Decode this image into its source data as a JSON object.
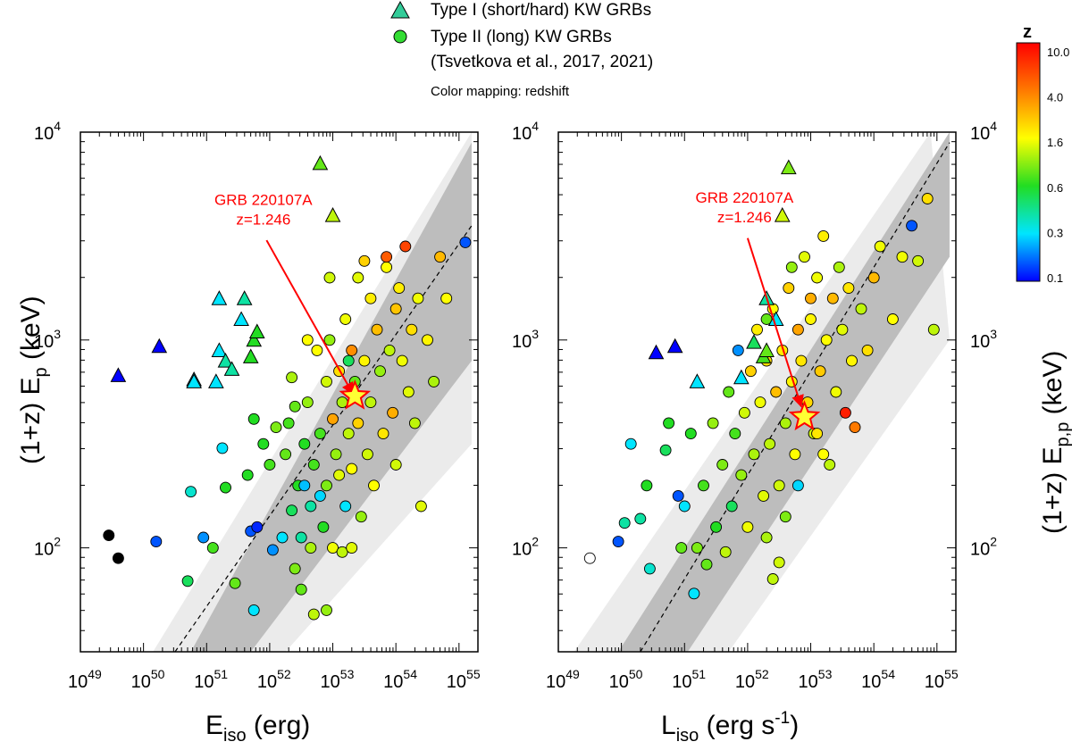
{
  "legend": {
    "type1_label": "Type I (short/hard) KW GRBs",
    "type2_label": "Type II (long) KW GRBs",
    "type2_ref": "(Tsvetkova et al., 2017, 2021)",
    "color_note": "Color mapping: redshift",
    "type1_color": "#33cc99",
    "type2_color": "#33dd33"
  },
  "colorbar": {
    "title": "z",
    "ticks": [
      "10.0",
      "4.0",
      "1.6",
      "0.6",
      "0.3",
      "0.1"
    ],
    "colors": [
      "#ff0000",
      "#ff7a00",
      "#ffff00",
      "#22dd22",
      "#00e5ff",
      "#0000ff"
    ]
  },
  "chart_data": [
    {
      "type": "scatter",
      "xlabel_main": "E",
      "xlabel_sub": "iso",
      "xlabel_unit": " (erg)",
      "ylabel_main": "(1+z) E",
      "ylabel_sub": "p",
      "ylabel_unit": " (keV)",
      "x_log_range": [
        49,
        55.3
      ],
      "y_log_range": [
        1.5,
        4.0
      ],
      "x_tick_exponents": [
        "49",
        "50",
        "51",
        "52",
        "53",
        "54",
        "55"
      ],
      "y_tick_exponents": [
        "2",
        "3",
        "4"
      ],
      "fit_line": [
        [
          50.5,
          1.5
        ],
        [
          55.2,
          3.55
        ]
      ],
      "band_inner": [
        [
          50.75,
          1.5
        ],
        [
          55.2,
          3.95
        ],
        [
          55.2,
          2.9
        ],
        [
          51.7,
          1.5
        ]
      ],
      "band_outer": [
        [
          50.15,
          1.5
        ],
        [
          55.2,
          4.0
        ],
        [
          55.2,
          2.5
        ],
        [
          52.25,
          1.5
        ]
      ],
      "annotation": {
        "name": "GRB 220107A",
        "z_text": "z=1.246",
        "label_at": [
          51.9,
          3.65
        ],
        "arrow_from": [
          51.95,
          3.48
        ],
        "arrow_to": [
          53.32,
          2.74
        ]
      },
      "star": [
        53.35,
        2.73
      ],
      "type1": [
        [
          49.6,
          2.83,
          0.1
        ],
        [
          50.25,
          2.97,
          0.1
        ],
        [
          50.8,
          2.81,
          0.3
        ],
        [
          50.8,
          2.8,
          0.3
        ],
        [
          51.15,
          2.8,
          0.3
        ],
        [
          51.2,
          3.2,
          0.3
        ],
        [
          51.2,
          2.95,
          0.3
        ],
        [
          51.3,
          2.9,
          0.4
        ],
        [
          51.4,
          2.86,
          0.4
        ],
        [
          51.55,
          3.1,
          0.3
        ],
        [
          51.6,
          3.2,
          0.4
        ],
        [
          51.75,
          3.0,
          0.6
        ],
        [
          51.8,
          3.04,
          0.6
        ],
        [
          51.7,
          2.92,
          0.6
        ],
        [
          52.8,
          3.85,
          0.8
        ],
        [
          53.0,
          3.6,
          1.2
        ]
      ],
      "type2": [
        [
          49.45,
          2.06,
          0
        ],
        [
          49.6,
          1.95,
          0
        ],
        [
          50.2,
          2.03,
          0.15
        ],
        [
          50.7,
          1.84,
          0.5
        ],
        [
          50.75,
          2.27,
          0.35
        ],
        [
          50.95,
          2.05,
          0.2
        ],
        [
          51.1,
          2.0,
          0.7
        ],
        [
          51.25,
          2.48,
          0.3
        ],
        [
          51.3,
          2.29,
          0.6
        ],
        [
          51.45,
          1.83,
          0.8
        ],
        [
          51.65,
          2.35,
          0.6
        ],
        [
          51.7,
          2.08,
          0.15
        ],
        [
          51.75,
          2.62,
          0.6
        ],
        [
          51.75,
          1.7,
          0.3
        ],
        [
          51.8,
          2.1,
          0.12
        ],
        [
          51.9,
          2.5,
          0.6
        ],
        [
          52.05,
          1.99,
          0.2
        ],
        [
          52.2,
          2.05,
          0.3
        ],
        [
          52.25,
          2.45,
          0.8
        ],
        [
          52.3,
          2.6,
          0.7
        ],
        [
          52.35,
          2.18,
          0.5
        ],
        [
          52.4,
          2.68,
          0.8
        ],
        [
          52.45,
          2.3,
          0.6
        ],
        [
          52.5,
          2.05,
          0.4
        ],
        [
          52.5,
          1.8,
          0.8
        ],
        [
          52.55,
          2.5,
          0.6
        ],
        [
          52.6,
          2.7,
          1.0
        ],
        [
          52.65,
          2.2,
          0.4
        ],
        [
          52.7,
          2.4,
          0.7
        ],
        [
          52.7,
          1.68,
          1.2
        ],
        [
          52.75,
          2.95,
          1.6
        ],
        [
          52.8,
          2.55,
          0.7
        ],
        [
          52.85,
          2.1,
          0.6
        ],
        [
          52.9,
          2.8,
          1.3
        ],
        [
          52.9,
          2.3,
          0.9
        ],
        [
          52.95,
          3.0,
          1.0
        ],
        [
          53.0,
          2.62,
          3.0
        ],
        [
          53.0,
          2.0,
          1.5
        ],
        [
          53.05,
          2.45,
          1.0
        ],
        [
          53.1,
          2.85,
          2.0
        ],
        [
          53.1,
          2.35,
          1.4
        ],
        [
          53.15,
          2.7,
          1.1
        ],
        [
          53.2,
          3.1,
          1.5
        ],
        [
          53.2,
          2.2,
          0.3
        ],
        [
          53.25,
          2.55,
          1.2
        ],
        [
          53.3,
          2.95,
          3.5
        ],
        [
          53.3,
          2.38,
          1.6
        ],
        [
          53.35,
          2.8,
          0.8
        ],
        [
          53.4,
          3.3,
          1.4
        ],
        [
          53.4,
          2.6,
          2.2
        ],
        [
          53.45,
          2.15,
          1.0
        ],
        [
          53.5,
          2.9,
          1.7
        ],
        [
          53.55,
          2.45,
          1.3
        ],
        [
          53.6,
          3.2,
          1.8
        ],
        [
          53.6,
          2.7,
          1.2
        ],
        [
          53.65,
          2.3,
          1.6
        ],
        [
          53.7,
          3.05,
          2.5
        ],
        [
          53.75,
          2.85,
          1.0
        ],
        [
          53.8,
          2.55,
          1.9
        ],
        [
          53.85,
          3.35,
          1.6
        ],
        [
          53.9,
          2.95,
          1.2
        ],
        [
          53.95,
          2.65,
          2.8
        ],
        [
          54.0,
          3.15,
          2.4
        ],
        [
          54.0,
          2.4,
          1.3
        ],
        [
          54.05,
          3.25,
          1.8
        ],
        [
          54.1,
          2.9,
          1.5
        ],
        [
          54.15,
          3.45,
          6.0
        ],
        [
          54.2,
          2.75,
          1.4
        ],
        [
          54.25,
          3.05,
          2.0
        ],
        [
          54.3,
          2.6,
          1.2
        ],
        [
          54.35,
          3.2,
          1.5
        ],
        [
          54.4,
          2.2,
          1.4
        ],
        [
          54.5,
          3.0,
          1.7
        ],
        [
          54.6,
          2.8,
          1.1
        ],
        [
          54.7,
          3.4,
          2.6
        ],
        [
          54.8,
          3.2,
          1.6
        ],
        [
          55.1,
          3.47,
          0.15
        ],
        [
          52.65,
          2.0,
          1.1
        ],
        [
          52.9,
          1.7,
          1.0
        ],
        [
          53.15,
          1.98,
          1.2
        ],
        [
          53.3,
          2.0,
          1.4
        ],
        [
          52.4,
          1.9,
          0.9
        ],
        [
          52.55,
          2.3,
          0.25
        ],
        [
          52.8,
          2.25,
          0.28
        ],
        [
          53.25,
          2.9,
          0.5
        ],
        [
          52.95,
          3.3,
          1.3
        ],
        [
          53.5,
          3.38,
          2.2
        ],
        [
          53.85,
          3.4,
          5.0
        ],
        [
          52.6,
          3.0,
          1.6
        ],
        [
          52.35,
          2.82,
          1.1
        ],
        [
          52.1,
          2.58,
          0.9
        ],
        [
          52.0,
          2.4,
          0.7
        ]
      ]
    },
    {
      "type": "scatter",
      "xlabel_main": "L",
      "xlabel_sub": "iso",
      "xlabel_unit": " (erg s",
      "xlabel_sup": "-1",
      "xlabel_close": ")",
      "ylabel_main": "(1+z) E",
      "ylabel_sub": "p,p",
      "ylabel_unit": " (keV)",
      "x_log_range": [
        49,
        55.3
      ],
      "y_log_range": [
        1.5,
        4.0
      ],
      "x_tick_exponents": [
        "49",
        "50",
        "51",
        "52",
        "53",
        "54",
        "55"
      ],
      "y_tick_exponents": [
        "2",
        "3",
        "4"
      ],
      "fit_line": [
        [
          50.3,
          1.5
        ],
        [
          55.2,
          3.95
        ]
      ],
      "band_inner": [
        [
          49.95,
          1.5
        ],
        [
          55.2,
          4.0
        ],
        [
          55.2,
          3.4
        ],
        [
          51.05,
          1.5
        ]
      ],
      "band_outer": [
        [
          49.25,
          1.5
        ],
        [
          54.9,
          4.0
        ],
        [
          55.2,
          3.0
        ],
        [
          51.7,
          1.5
        ]
      ],
      "annotation": {
        "name": "GRB 220107A",
        "z_text": "z=1.246",
        "label_at": [
          51.95,
          3.66
        ],
        "arrow_from": [
          52.0,
          3.49
        ],
        "arrow_to": [
          52.85,
          2.68
        ]
      },
      "star": [
        52.9,
        2.63
      ],
      "type1": [
        [
          50.55,
          2.94,
          0.1
        ],
        [
          50.85,
          2.97,
          0.1
        ],
        [
          51.2,
          2.8,
          0.3
        ],
        [
          51.9,
          2.82,
          0.3
        ],
        [
          52.1,
          2.99,
          0.5
        ],
        [
          52.3,
          3.2,
          0.4
        ],
        [
          52.45,
          3.1,
          0.3
        ],
        [
          52.25,
          2.92,
          0.7
        ],
        [
          52.3,
          2.95,
          0.8
        ],
        [
          52.55,
          3.6,
          1.3
        ],
        [
          52.65,
          3.83,
          0.9
        ]
      ],
      "type2": [
        [
          49.5,
          1.95,
          -1
        ],
        [
          49.95,
          2.03,
          0.15
        ],
        [
          50.05,
          2.12,
          0.4
        ],
        [
          50.15,
          2.5,
          0.3
        ],
        [
          50.3,
          2.14,
          0.4
        ],
        [
          50.4,
          2.3,
          0.6
        ],
        [
          50.45,
          1.9,
          0.35
        ],
        [
          50.7,
          2.47,
          0.5
        ],
        [
          50.75,
          2.6,
          0.6
        ],
        [
          50.9,
          2.25,
          0.15
        ],
        [
          50.95,
          2.0,
          0.8
        ],
        [
          51.0,
          2.2,
          0.3
        ],
        [
          51.1,
          2.55,
          0.6
        ],
        [
          51.15,
          1.78,
          0.3
        ],
        [
          51.2,
          2.0,
          0.9
        ],
        [
          51.3,
          2.3,
          0.7
        ],
        [
          51.35,
          1.92,
          0.8
        ],
        [
          51.45,
          2.6,
          1.0
        ],
        [
          51.5,
          2.1,
          0.6
        ],
        [
          51.6,
          2.4,
          0.9
        ],
        [
          51.65,
          1.98,
          1.2
        ],
        [
          51.7,
          2.75,
          0.8
        ],
        [
          51.75,
          2.2,
          0.5
        ],
        [
          51.8,
          2.55,
          0.7
        ],
        [
          51.85,
          2.95,
          0.2
        ],
        [
          51.9,
          2.35,
          1.0
        ],
        [
          51.95,
          2.65,
          1.3
        ],
        [
          52.0,
          2.1,
          1.5
        ],
        [
          52.05,
          2.85,
          2.2
        ],
        [
          52.1,
          2.45,
          1.1
        ],
        [
          52.15,
          3.05,
          1.8
        ],
        [
          52.2,
          2.7,
          1.5
        ],
        [
          52.25,
          2.25,
          1.4
        ],
        [
          52.3,
          2.9,
          2.0
        ],
        [
          52.35,
          2.5,
          1.2
        ],
        [
          52.4,
          3.15,
          1.6
        ],
        [
          52.45,
          2.75,
          2.5
        ],
        [
          52.5,
          2.3,
          1.3
        ],
        [
          52.55,
          2.95,
          1.8
        ],
        [
          52.6,
          2.6,
          1.1
        ],
        [
          52.65,
          3.25,
          2.2
        ],
        [
          52.7,
          2.8,
          1.7
        ],
        [
          52.75,
          2.45,
          1.6
        ],
        [
          52.8,
          3.05,
          3.0
        ],
        [
          52.85,
          2.9,
          1.9
        ],
        [
          52.9,
          3.4,
          1.4
        ],
        [
          52.95,
          2.7,
          2.1
        ],
        [
          53.0,
          3.1,
          1.7
        ],
        [
          53.05,
          2.55,
          1.3
        ],
        [
          53.1,
          3.3,
          1.5
        ],
        [
          53.15,
          2.85,
          2.3
        ],
        [
          53.2,
          3.5,
          1.8
        ],
        [
          53.25,
          3.0,
          1.6
        ],
        [
          53.3,
          2.4,
          1.2
        ],
        [
          53.35,
          3.2,
          2.6
        ],
        [
          53.4,
          2.75,
          1.5
        ],
        [
          53.45,
          3.35,
          1.1
        ],
        [
          53.5,
          3.05,
          1.4
        ],
        [
          53.55,
          2.65,
          8.0
        ],
        [
          53.6,
          3.25,
          1.9
        ],
        [
          53.65,
          2.9,
          1.7
        ],
        [
          53.7,
          2.58,
          4.0
        ],
        [
          53.8,
          3.15,
          1.2
        ],
        [
          53.9,
          2.95,
          2.0
        ],
        [
          54.0,
          3.3,
          2.6
        ],
        [
          54.1,
          3.45,
          1.5
        ],
        [
          54.3,
          3.1,
          1.6
        ],
        [
          54.45,
          3.4,
          1.5
        ],
        [
          54.6,
          3.55,
          0.15
        ],
        [
          54.7,
          3.38,
          1.3
        ],
        [
          54.95,
          3.05,
          1.2
        ],
        [
          54.85,
          3.68,
          2.0
        ],
        [
          52.5,
          1.93,
          1.3
        ],
        [
          52.6,
          2.15,
          0.9
        ],
        [
          52.3,
          2.05,
          1.1
        ],
        [
          52.4,
          1.85,
          1.2
        ],
        [
          53.1,
          2.55,
          1.9
        ],
        [
          53.2,
          2.45,
          1.6
        ],
        [
          52.7,
          3.35,
          1.0
        ],
        [
          52.3,
          3.1,
          0.8
        ],
        [
          53.0,
          3.2,
          2.8
        ],
        [
          52.8,
          2.3,
          0.28
        ]
      ]
    }
  ]
}
